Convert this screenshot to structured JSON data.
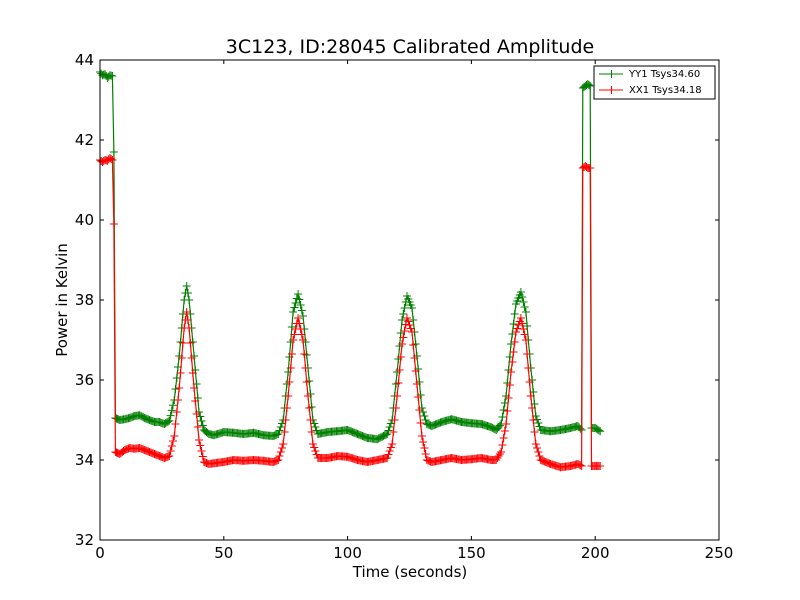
{
  "chart_data": {
    "type": "line",
    "title": "3C123, ID:28045 Calibrated Amplitude",
    "xlabel": "Time (seconds)",
    "ylabel": "Power in Kelvin",
    "xlim": [
      0,
      250
    ],
    "ylim": [
      32,
      44
    ],
    "xticks": [
      0,
      50,
      100,
      150,
      200,
      250
    ],
    "yticks": [
      32,
      34,
      36,
      38,
      40,
      42,
      44
    ],
    "grid": false,
    "legend_position": "top-right",
    "marker": "+",
    "series": [
      {
        "name": "YY1 Tsys34.60",
        "color": "#008000",
        "points": [
          [
            0,
            43.7
          ],
          [
            1,
            43.62
          ],
          [
            2,
            43.65
          ],
          [
            3,
            43.55
          ],
          [
            4,
            43.62
          ],
          [
            5,
            43.6
          ],
          [
            5.6,
            41.7
          ],
          [
            6.2,
            35.05
          ],
          [
            8,
            35.0
          ],
          [
            10,
            35.02
          ],
          [
            12,
            35.05
          ],
          [
            14,
            35.1
          ],
          [
            16,
            35.12
          ],
          [
            18,
            35.05
          ],
          [
            20,
            35.0
          ],
          [
            22,
            34.95
          ],
          [
            24,
            34.95
          ],
          [
            26,
            34.9
          ],
          [
            28,
            34.98
          ],
          [
            30,
            35.5
          ],
          [
            32,
            36.6
          ],
          [
            34,
            38.0
          ],
          [
            35,
            38.35
          ],
          [
            36,
            38.0
          ],
          [
            38,
            36.6
          ],
          [
            40,
            35.2
          ],
          [
            42,
            34.75
          ],
          [
            44,
            34.65
          ],
          [
            46,
            34.62
          ],
          [
            50,
            34.7
          ],
          [
            54,
            34.68
          ],
          [
            58,
            34.65
          ],
          [
            62,
            34.68
          ],
          [
            66,
            34.62
          ],
          [
            70,
            34.6
          ],
          [
            72,
            34.65
          ],
          [
            74,
            35.0
          ],
          [
            76,
            36.2
          ],
          [
            78,
            37.7
          ],
          [
            80,
            38.15
          ],
          [
            82,
            37.6
          ],
          [
            84,
            36.3
          ],
          [
            86,
            35.0
          ],
          [
            88,
            34.65
          ],
          [
            92,
            34.7
          ],
          [
            96,
            34.72
          ],
          [
            100,
            34.75
          ],
          [
            104,
            34.65
          ],
          [
            108,
            34.55
          ],
          [
            112,
            34.52
          ],
          [
            116,
            34.65
          ],
          [
            118,
            35.0
          ],
          [
            120,
            36.2
          ],
          [
            122,
            37.5
          ],
          [
            124,
            38.1
          ],
          [
            126,
            37.8
          ],
          [
            128,
            36.6
          ],
          [
            130,
            35.3
          ],
          [
            132,
            34.9
          ],
          [
            134,
            34.85
          ],
          [
            138,
            34.95
          ],
          [
            142,
            35.02
          ],
          [
            146,
            34.95
          ],
          [
            150,
            34.92
          ],
          [
            154,
            34.9
          ],
          [
            158,
            34.82
          ],
          [
            160,
            34.75
          ],
          [
            162,
            34.9
          ],
          [
            164,
            35.6
          ],
          [
            166,
            36.9
          ],
          [
            168,
            37.9
          ],
          [
            170,
            38.2
          ],
          [
            172,
            37.7
          ],
          [
            174,
            36.3
          ],
          [
            176,
            35.1
          ],
          [
            178,
            34.75
          ],
          [
            182,
            34.72
          ],
          [
            186,
            34.75
          ],
          [
            190,
            34.8
          ],
          [
            193,
            34.85
          ],
          [
            194.5,
            34.75
          ],
          [
            195,
            43.3
          ],
          [
            196,
            43.35
          ],
          [
            197,
            43.4
          ],
          [
            198,
            43.35
          ],
          [
            198.5,
            34.8
          ],
          [
            200,
            34.8
          ],
          [
            202,
            34.72
          ]
        ]
      },
      {
        "name": "XX1 Tsys34.18",
        "color": "#ff0000",
        "points": [
          [
            0,
            41.5
          ],
          [
            1,
            41.45
          ],
          [
            2,
            41.5
          ],
          [
            3,
            41.48
          ],
          [
            4,
            41.55
          ],
          [
            5,
            41.5
          ],
          [
            5.6,
            39.9
          ],
          [
            6.2,
            34.2
          ],
          [
            8,
            34.15
          ],
          [
            10,
            34.25
          ],
          [
            12,
            34.3
          ],
          [
            14,
            34.28
          ],
          [
            16,
            34.3
          ],
          [
            18,
            34.25
          ],
          [
            20,
            34.2
          ],
          [
            22,
            34.15
          ],
          [
            24,
            34.1
          ],
          [
            26,
            34.05
          ],
          [
            28,
            34.1
          ],
          [
            30,
            34.6
          ],
          [
            32,
            35.8
          ],
          [
            34,
            37.3
          ],
          [
            35,
            37.7
          ],
          [
            36,
            37.3
          ],
          [
            38,
            35.8
          ],
          [
            40,
            34.5
          ],
          [
            42,
            33.95
          ],
          [
            44,
            33.9
          ],
          [
            46,
            33.92
          ],
          [
            50,
            33.95
          ],
          [
            54,
            34.0
          ],
          [
            58,
            33.98
          ],
          [
            62,
            34.0
          ],
          [
            66,
            33.98
          ],
          [
            70,
            33.95
          ],
          [
            72,
            34.0
          ],
          [
            74,
            34.4
          ],
          [
            76,
            35.6
          ],
          [
            78,
            37.0
          ],
          [
            80,
            37.55
          ],
          [
            82,
            37.0
          ],
          [
            84,
            35.6
          ],
          [
            86,
            34.4
          ],
          [
            88,
            34.05
          ],
          [
            92,
            34.05
          ],
          [
            96,
            34.1
          ],
          [
            100,
            34.08
          ],
          [
            104,
            34.0
          ],
          [
            108,
            33.95
          ],
          [
            112,
            34.0
          ],
          [
            116,
            34.05
          ],
          [
            118,
            34.4
          ],
          [
            120,
            35.6
          ],
          [
            122,
            36.9
          ],
          [
            124,
            37.55
          ],
          [
            126,
            37.2
          ],
          [
            128,
            35.9
          ],
          [
            130,
            34.6
          ],
          [
            132,
            34.0
          ],
          [
            134,
            33.95
          ],
          [
            138,
            34.0
          ],
          [
            142,
            34.05
          ],
          [
            146,
            34.0
          ],
          [
            150,
            34.02
          ],
          [
            154,
            34.05
          ],
          [
            158,
            34.0
          ],
          [
            160,
            34.0
          ],
          [
            162,
            34.2
          ],
          [
            164,
            34.9
          ],
          [
            166,
            36.2
          ],
          [
            168,
            37.2
          ],
          [
            170,
            37.55
          ],
          [
            172,
            37.0
          ],
          [
            174,
            35.6
          ],
          [
            176,
            34.4
          ],
          [
            178,
            34.0
          ],
          [
            182,
            33.9
          ],
          [
            186,
            33.82
          ],
          [
            190,
            33.85
          ],
          [
            193,
            33.9
          ],
          [
            194.5,
            33.85
          ],
          [
            195,
            41.3
          ],
          [
            196,
            41.35
          ],
          [
            197,
            41.3
          ],
          [
            198,
            41.3
          ],
          [
            198.5,
            33.85
          ],
          [
            200,
            33.85
          ],
          [
            202,
            33.85
          ]
        ]
      }
    ]
  }
}
